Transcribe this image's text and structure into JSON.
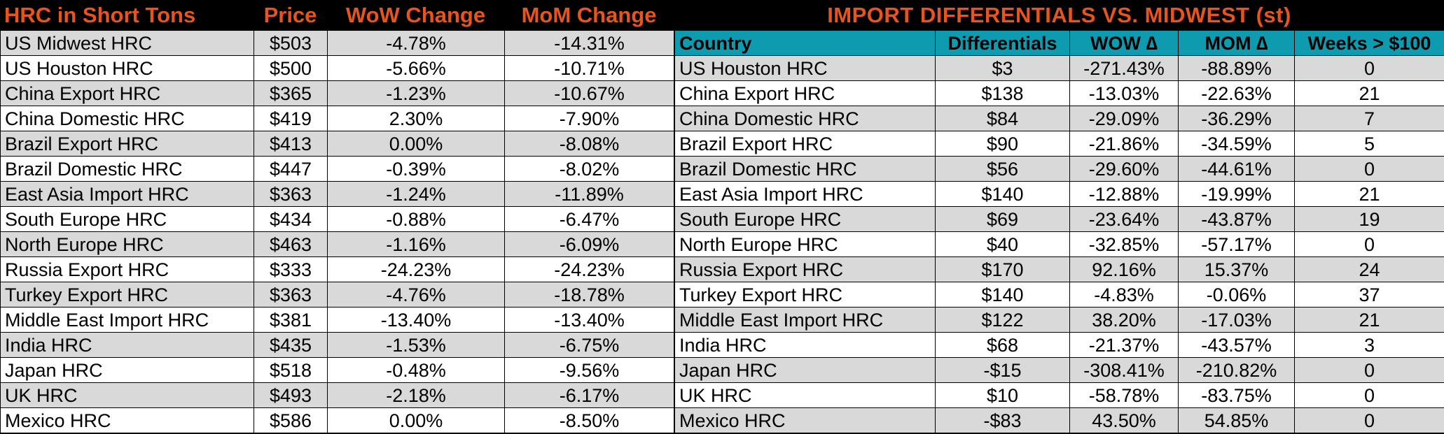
{
  "left": {
    "headers": {
      "name": "HRC in Short Tons",
      "price": "Price",
      "wow": "WoW Change",
      "mom": "MoM Change"
    },
    "rows": [
      {
        "name": "US Midwest HRC",
        "price": "$503",
        "wow": "-4.78%",
        "mom": "-14.31%"
      },
      {
        "name": "US Houston HRC",
        "price": "$500",
        "wow": "-5.66%",
        "mom": "-10.71%"
      },
      {
        "name": "China Export HRC",
        "price": "$365",
        "wow": "-1.23%",
        "mom": "-10.67%"
      },
      {
        "name": "China Domestic HRC",
        "price": "$419",
        "wow": "2.30%",
        "mom": "-7.90%"
      },
      {
        "name": "Brazil Export HRC",
        "price": "$413",
        "wow": "0.00%",
        "mom": "-8.08%"
      },
      {
        "name": "Brazil Domestic HRC",
        "price": "$447",
        "wow": "-0.39%",
        "mom": "-8.02%"
      },
      {
        "name": "East Asia Import HRC",
        "price": "$363",
        "wow": "-1.24%",
        "mom": "-11.89%"
      },
      {
        "name": "South Europe HRC",
        "price": "$434",
        "wow": "-0.88%",
        "mom": "-6.47%"
      },
      {
        "name": "North Europe HRC",
        "price": "$463",
        "wow": "-1.16%",
        "mom": "-6.09%"
      },
      {
        "name": "Russia Export HRC",
        "price": "$333",
        "wow": "-24.23%",
        "mom": "-24.23%"
      },
      {
        "name": "Turkey Export HRC",
        "price": "$363",
        "wow": "-4.76%",
        "mom": "-18.78%"
      },
      {
        "name": "Middle East Import HRC",
        "price": "$381",
        "wow": "-13.40%",
        "mom": "-13.40%"
      },
      {
        "name": "India HRC",
        "price": "$435",
        "wow": "-1.53%",
        "mom": "-6.75%"
      },
      {
        "name": "Japan HRC",
        "price": "$518",
        "wow": "-0.48%",
        "mom": "-9.56%"
      },
      {
        "name": "UK HRC",
        "price": "$493",
        "wow": "-2.18%",
        "mom": "-6.17%"
      },
      {
        "name": "Mexico HRC",
        "price": "$586",
        "wow": "0.00%",
        "mom": "-8.50%"
      }
    ]
  },
  "right": {
    "title": "IMPORT DIFFERENTIALS VS. MIDWEST (st)",
    "headers": {
      "country": "Country",
      "diff": "Differentials",
      "wow": "WOW ∆",
      "mom": "MOM ∆",
      "weeks": "Weeks > $100"
    },
    "rows": [
      {
        "name": "US Houston HRC",
        "diff": "$3",
        "wow": "-271.43%",
        "mom": "-88.89%",
        "weeks": "0"
      },
      {
        "name": "China Export HRC",
        "diff": "$138",
        "wow": "-13.03%",
        "mom": "-22.63%",
        "weeks": "21"
      },
      {
        "name": "China Domestic HRC",
        "diff": "$84",
        "wow": "-29.09%",
        "mom": "-36.29%",
        "weeks": "7"
      },
      {
        "name": "Brazil Export HRC",
        "diff": "$90",
        "wow": "-21.86%",
        "mom": "-34.59%",
        "weeks": "5"
      },
      {
        "name": "Brazil Domestic HRC",
        "diff": "$56",
        "wow": "-29.60%",
        "mom": "-44.61%",
        "weeks": "0"
      },
      {
        "name": "East Asia Import HRC",
        "diff": "$140",
        "wow": "-12.88%",
        "mom": "-19.99%",
        "weeks": "21"
      },
      {
        "name": "South Europe HRC",
        "diff": "$69",
        "wow": "-23.64%",
        "mom": "-43.87%",
        "weeks": "19"
      },
      {
        "name": "North Europe HRC",
        "diff": "$40",
        "wow": "-32.85%",
        "mom": "-57.17%",
        "weeks": "0"
      },
      {
        "name": "Russia Export HRC",
        "diff": "$170",
        "wow": "92.16%",
        "mom": "15.37%",
        "weeks": "24"
      },
      {
        "name": "Turkey Export HRC",
        "diff": "$140",
        "wow": "-4.83%",
        "mom": "-0.06%",
        "weeks": "37"
      },
      {
        "name": "Middle East Import HRC",
        "diff": "$122",
        "wow": "38.20%",
        "mom": "-17.03%",
        "weeks": "21"
      },
      {
        "name": "India HRC",
        "diff": "$68",
        "wow": "-21.37%",
        "mom": "-43.57%",
        "weeks": "3"
      },
      {
        "name": "Japan HRC",
        "diff": "-$15",
        "wow": "-308.41%",
        "mom": "-210.82%",
        "weeks": "0"
      },
      {
        "name": "UK HRC",
        "diff": "$10",
        "wow": "-58.78%",
        "mom": "-83.75%",
        "weeks": "0"
      },
      {
        "name": "Mexico HRC",
        "diff": "-$83",
        "wow": "43.50%",
        "mom": "54.85%",
        "weeks": "0"
      }
    ]
  },
  "colors": {
    "title_orange": "#e8541d",
    "header_teal": "#0e9bb0",
    "row_shade": "#d9d9d9",
    "row_plain": "#ffffff"
  }
}
